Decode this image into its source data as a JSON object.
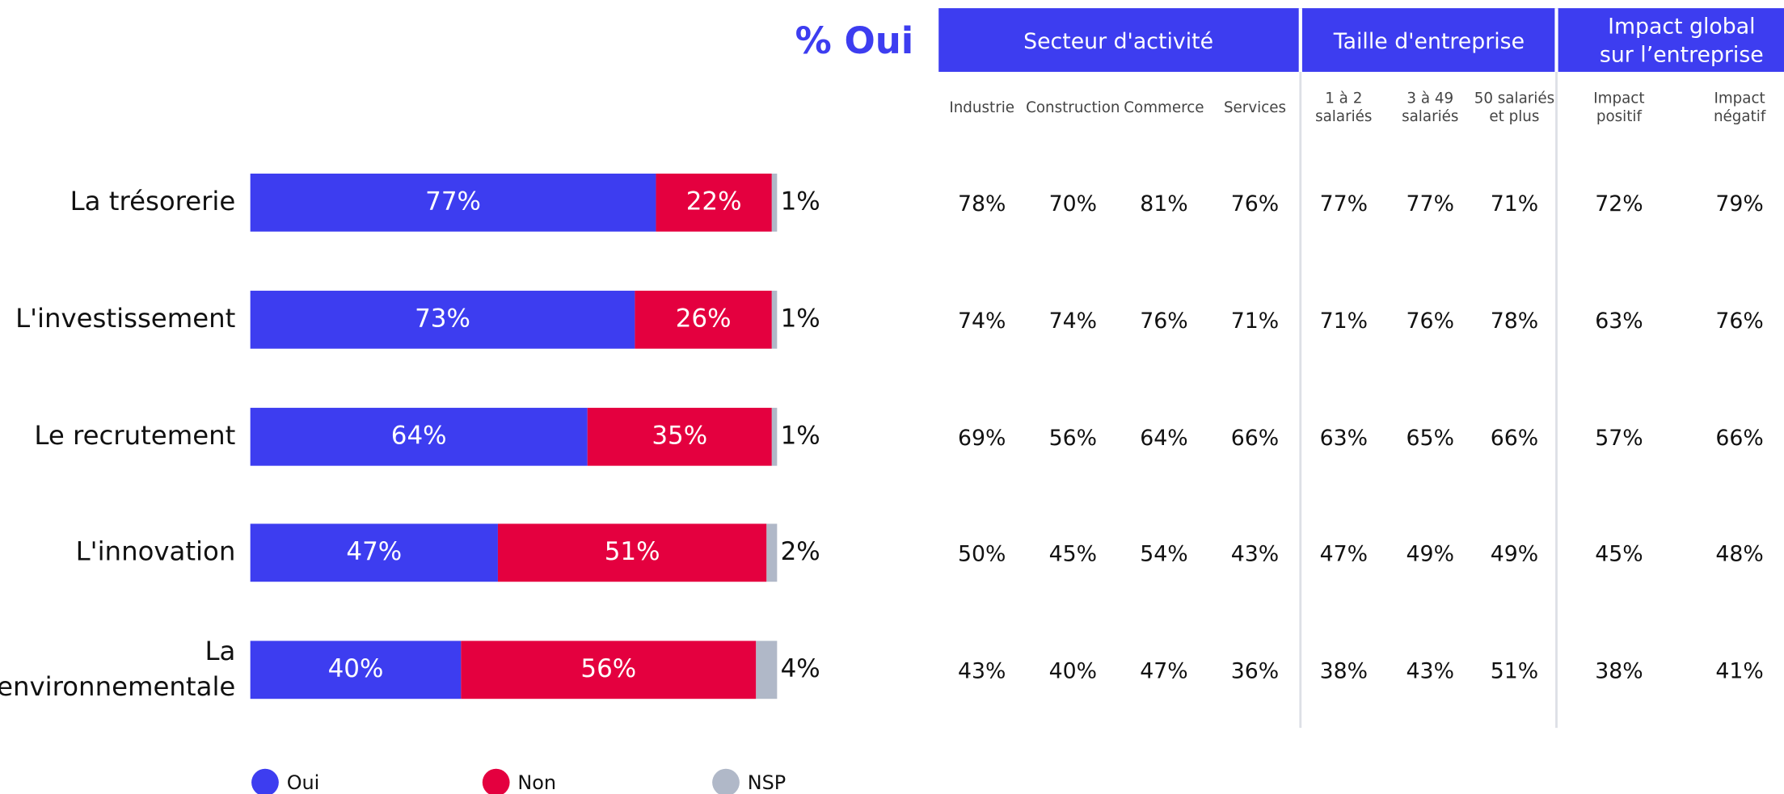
{
  "chart_data": {
    "type": "stacked_bar_horizontal",
    "categories": [
      "La trésorerie",
      "L'investissement",
      "Le recrutement",
      "L'innovation",
      "La transformation environnementale"
    ],
    "series": [
      {
        "name": "Oui",
        "color": "#3d3df0",
        "values": [
          77,
          73,
          64,
          47,
          40
        ],
        "value_labels": [
          "77%",
          "73%",
          "64%",
          "47%",
          "40%"
        ]
      },
      {
        "name": "Non",
        "color": "#e4003f",
        "values": [
          22,
          26,
          35,
          51,
          56
        ],
        "value_labels": [
          "22%",
          "26%",
          "35%",
          "51%",
          "56%"
        ]
      },
      {
        "name": "NSP",
        "color": "#b0b8c8",
        "values": [
          1,
          1,
          1,
          2,
          4
        ],
        "value_labels": [
          "1%",
          "1%",
          "1%",
          "2%",
          "4%"
        ]
      }
    ]
  },
  "table": {
    "title": "% Oui",
    "groups": [
      [
        "Secteur d'activité"
      ],
      [
        "Taille d'entreprise"
      ],
      [
        "Impact global",
        "sur l’entreprise"
      ]
    ],
    "columns": [
      [
        "Industrie"
      ],
      [
        "Construction"
      ],
      [
        "Commerce"
      ],
      [
        "Services"
      ],
      [
        "1 à 2",
        "salariés"
      ],
      [
        "3 à 49",
        "salariés"
      ],
      [
        "50 salariés",
        "et plus"
      ],
      [
        "Impact",
        "positif"
      ],
      [
        "Impact",
        "négatif"
      ]
    ],
    "rows": [
      [
        "78%",
        "70%",
        "81%",
        "76%",
        "77%",
        "77%",
        "71%",
        "72%",
        "79%"
      ],
      [
        "74%",
        "74%",
        "76%",
        "71%",
        "71%",
        "76%",
        "78%",
        "63%",
        "76%"
      ],
      [
        "69%",
        "56%",
        "64%",
        "66%",
        "63%",
        "65%",
        "66%",
        "57%",
        "66%"
      ],
      [
        "50%",
        "45%",
        "54%",
        "43%",
        "47%",
        "49%",
        "49%",
        "45%",
        "48%"
      ],
      [
        "43%",
        "40%",
        "47%",
        "36%",
        "38%",
        "43%",
        "51%",
        "38%",
        "41%"
      ]
    ]
  }
}
